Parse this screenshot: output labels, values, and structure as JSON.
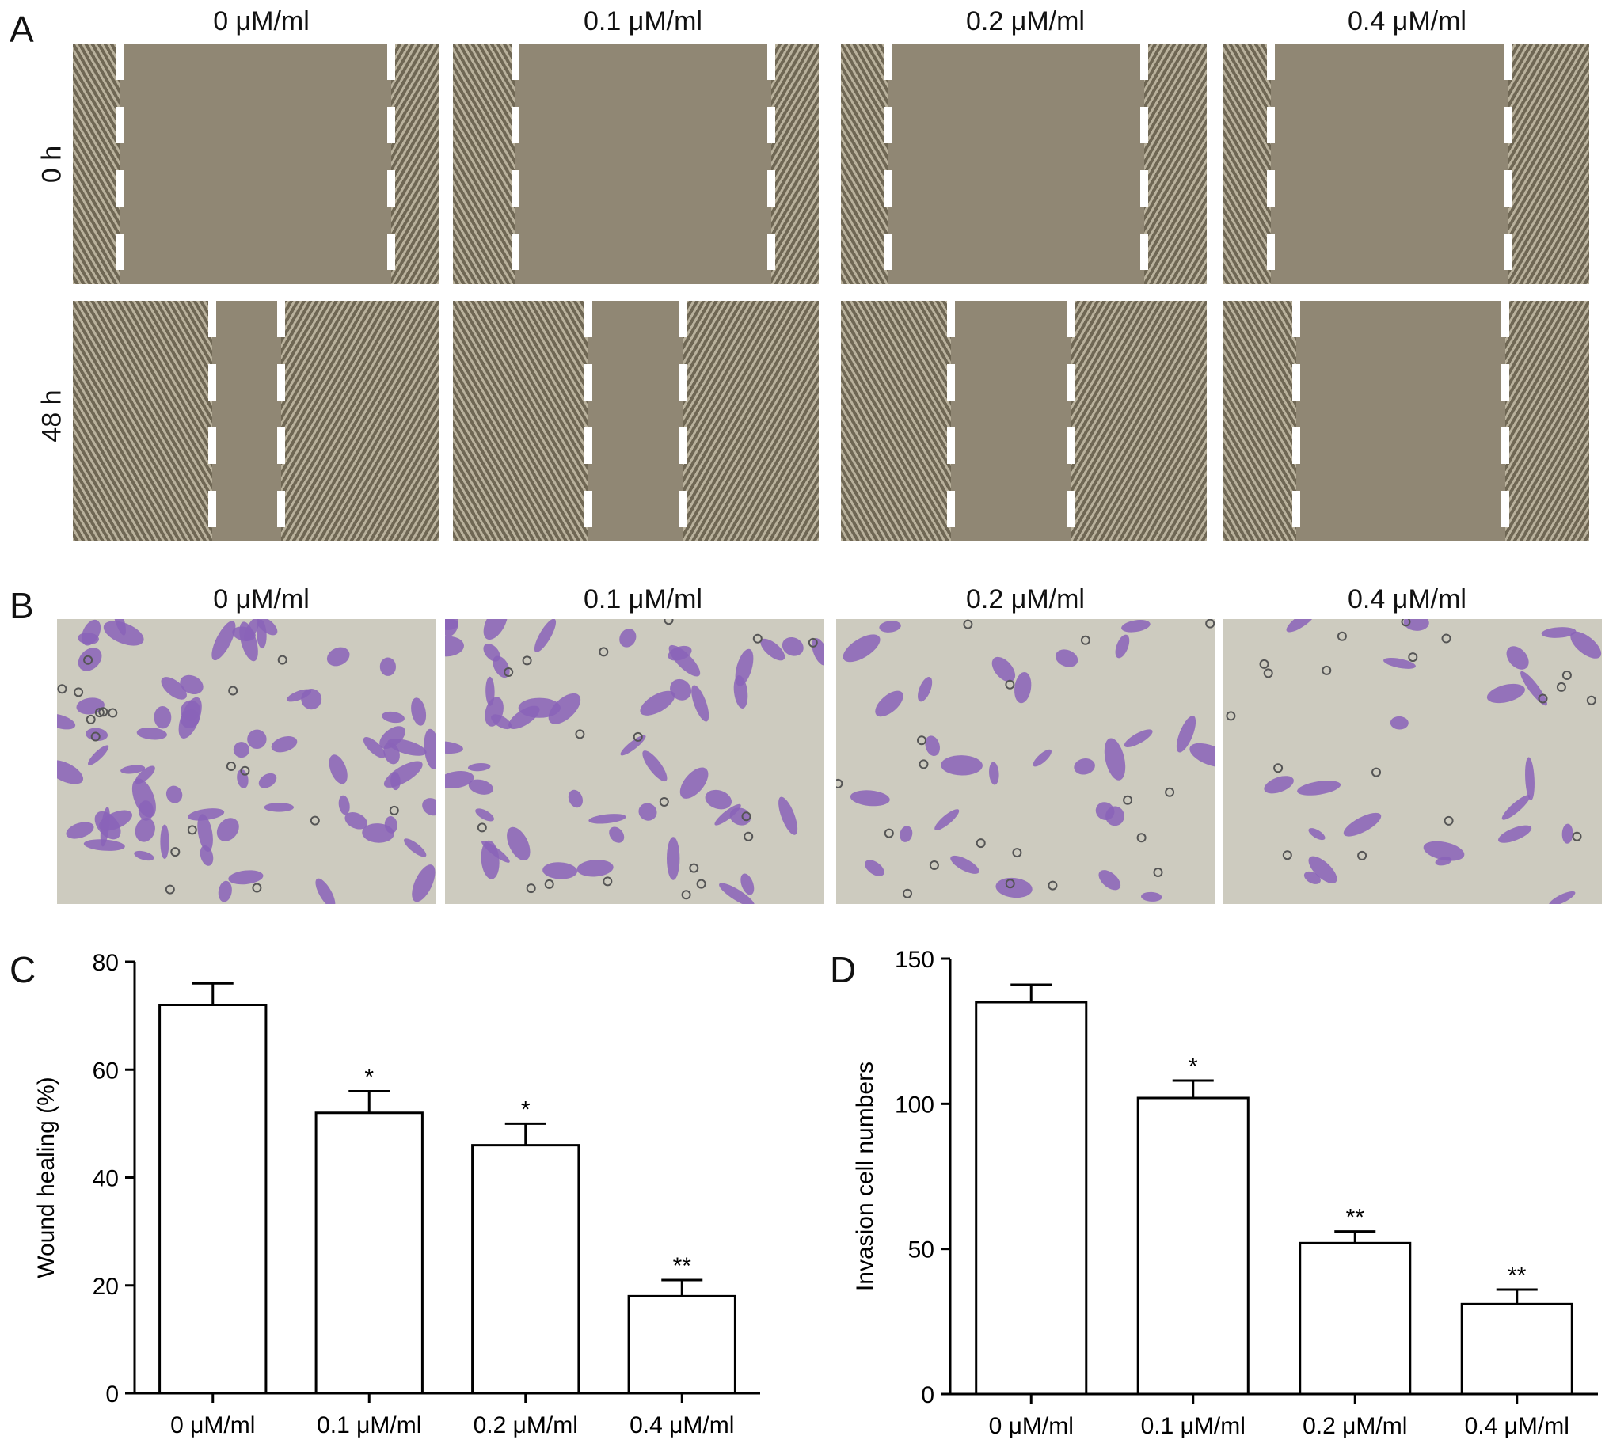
{
  "panels": {
    "a": {
      "letter": "A",
      "columns": [
        "0 μM/ml",
        "0.1 μM/ml",
        "0.2 μM/ml",
        "0.4 μM/ml"
      ],
      "rows": [
        "0 h",
        "48 h"
      ]
    },
    "b": {
      "letter": "B",
      "columns": [
        "0 μM/ml",
        "0.1 μM/ml",
        "0.2 μM/ml",
        "0.4 μM/ml"
      ]
    },
    "c": {
      "letter": "C"
    },
    "d": {
      "letter": "D"
    }
  },
  "colors": {
    "scratch_bg": "#908774",
    "cell_edge": "#b9b19c",
    "stain_bg": "#cdcbbf",
    "stain_cell": "#8a63b8",
    "bar_fill": "#ffffff",
    "axis": "#000000"
  },
  "chart_data": [
    {
      "type": "bar",
      "id": "C",
      "categories": [
        "0 μM/ml",
        "0.1 μM/ml",
        "0.2 μM/ml",
        "0.4 μM/ml"
      ],
      "values": [
        72,
        52,
        46,
        18
      ],
      "errors": [
        4,
        4,
        4,
        3
      ],
      "significance": [
        "",
        "*",
        "*",
        "**"
      ],
      "ylabel": "Wound healing (%)",
      "xlabel": "",
      "ylim": [
        0,
        80
      ],
      "yticks": [
        0,
        20,
        40,
        60,
        80
      ]
    },
    {
      "type": "bar",
      "id": "D",
      "categories": [
        "0 μM/ml",
        "0.1 μM/ml",
        "0.2 μM/ml",
        "0.4 μM/ml"
      ],
      "values": [
        135,
        102,
        52,
        31
      ],
      "errors": [
        6,
        6,
        4,
        5
      ],
      "significance": [
        "",
        "*",
        "**",
        "**"
      ],
      "ylabel": "Invasion cell numbers",
      "xlabel": "",
      "ylim": [
        0,
        150
      ],
      "yticks": [
        0,
        50,
        100,
        150
      ]
    }
  ]
}
